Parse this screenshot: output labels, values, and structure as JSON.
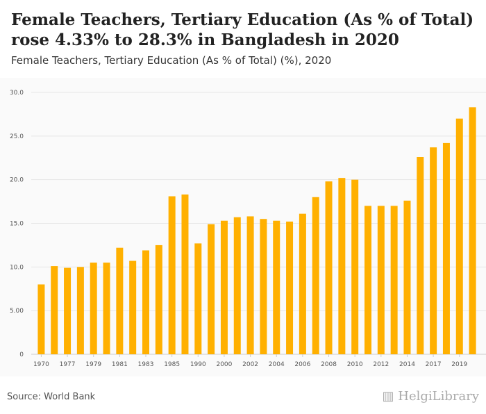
{
  "title": "Female Teachers, Tertiary Education (As % of Total) rose 4.33% to 28.3% in Bangladesh in 2020",
  "subtitle": "Female Teachers, Tertiary Education (As % of Total) (%), 2020",
  "source": "Source: World Bank",
  "logo": "HelgiLibrary",
  "chart_data": {
    "type": "bar",
    "title": "Female Teachers, Tertiary Education (As % of Total) (%), 2020",
    "color": "#FFB000",
    "categories": [
      "1970",
      "1976",
      "1977",
      "1978",
      "1979",
      "1980",
      "1981",
      "1982",
      "1983",
      "1984",
      "1985",
      "1986",
      "1990",
      "1999",
      "2000",
      "2001",
      "2002",
      "2003",
      "2004",
      "2005",
      "2006",
      "2007",
      "2008",
      "2009",
      "2010",
      "2011",
      "2012",
      "2013",
      "2014",
      "2016",
      "2017",
      "2018",
      "2019",
      "2020"
    ],
    "values": [
      8.0,
      10.1,
      9.9,
      10.0,
      10.5,
      10.5,
      12.2,
      10.7,
      11.9,
      12.5,
      18.1,
      18.3,
      12.7,
      14.9,
      15.3,
      15.7,
      15.8,
      15.5,
      15.3,
      15.2,
      16.1,
      18.0,
      19.8,
      20.2,
      20.0,
      17.0,
      17.0,
      17.0,
      17.6,
      22.6,
      23.7,
      24.2,
      27.0,
      28.3
    ],
    "x_tick_labels": [
      "1970",
      "1977",
      "1979",
      "1981",
      "1983",
      "1985",
      "1990",
      "2000",
      "2002",
      "2004",
      "2006",
      "2008",
      "2010",
      "2012",
      "2014",
      "2017",
      "2019"
    ],
    "y_ticks": [
      "0",
      "5.00",
      "10.0",
      "15.0",
      "20.0",
      "25.0",
      "30.0"
    ],
    "ylim": [
      0,
      30
    ],
    "grid": true
  }
}
